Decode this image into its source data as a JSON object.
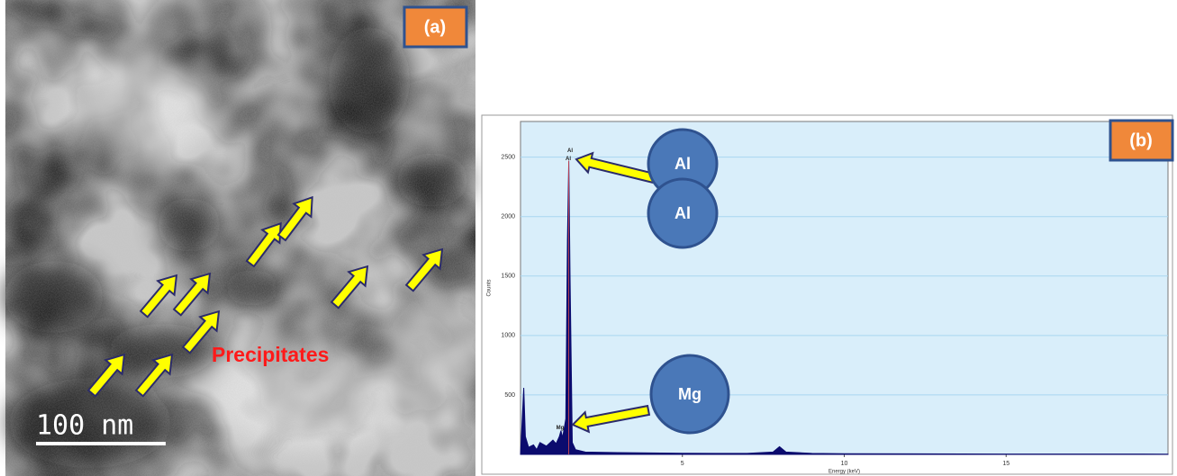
{
  "image_panel": {
    "label": "(a)",
    "annotation": "Precipitates",
    "scale_bar": "100 nm"
  },
  "chart_data": {
    "type": "area",
    "panel_label": "(b)",
    "x_label": "Energy (keV)",
    "y_label": "Counts",
    "x": [
      0,
      0.1,
      0.15,
      0.25,
      0.4,
      0.5,
      0.6,
      0.8,
      1.0,
      1.1,
      1.2,
      1.25,
      1.3,
      1.4,
      1.45,
      1.49,
      1.53,
      1.6,
      1.7,
      2.0,
      3,
      4,
      5,
      6,
      7,
      7.8,
      8.0,
      8.2,
      9,
      10,
      15,
      20
    ],
    "values": [
      0,
      560,
      150,
      60,
      80,
      40,
      100,
      70,
      120,
      90,
      150,
      200,
      140,
      300,
      1800,
      2470,
      1500,
      100,
      40,
      20,
      15,
      12,
      10,
      8,
      8,
      20,
      65,
      20,
      8,
      5,
      3,
      2
    ],
    "color": "#0b0b6e",
    "xlim": [
      0,
      20
    ],
    "xticks": [
      5,
      10,
      15
    ],
    "ylim": [
      0,
      2800
    ],
    "yticks": [
      500,
      1000,
      1500,
      2000,
      2500
    ],
    "grid": true,
    "peak_labels": [
      "Al",
      "Al",
      "Mg"
    ],
    "callouts": [
      "Al",
      "Al",
      "Mg"
    ]
  }
}
